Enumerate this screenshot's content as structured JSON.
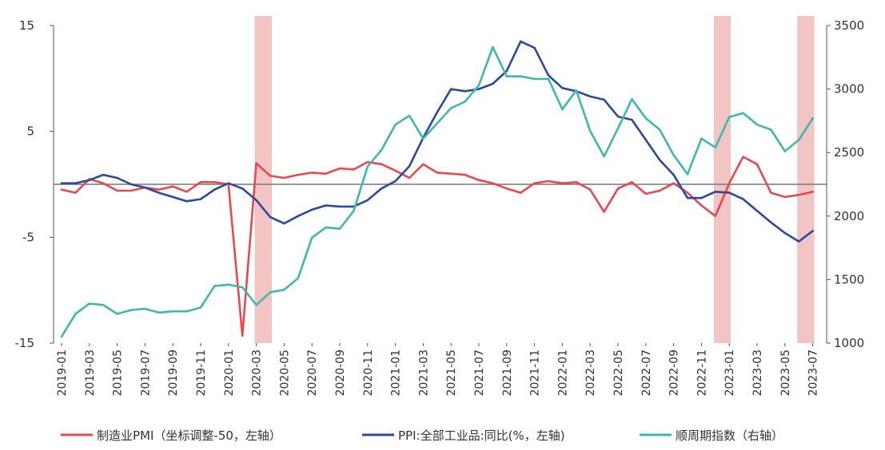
{
  "chart_data": {
    "type": "line",
    "title": "",
    "dual_axis": true,
    "left_axis": {
      "min": -15,
      "max": 15,
      "ticks": [
        15,
        5,
        -5,
        -15
      ]
    },
    "right_axis": {
      "min": 1000,
      "max": 3500,
      "ticks": [
        3500,
        3000,
        2500,
        2000,
        1500,
        1000
      ]
    },
    "x": [
      "2019-01",
      "2019-02",
      "2019-03",
      "2019-04",
      "2019-05",
      "2019-06",
      "2019-07",
      "2019-08",
      "2019-09",
      "2019-10",
      "2019-11",
      "2019-12",
      "2020-01",
      "2020-02",
      "2020-03",
      "2020-04",
      "2020-05",
      "2020-06",
      "2020-07",
      "2020-08",
      "2020-09",
      "2020-10",
      "2020-11",
      "2020-12",
      "2021-01",
      "2021-02",
      "2021-03",
      "2021-04",
      "2021-05",
      "2021-06",
      "2021-07",
      "2021-08",
      "2021-09",
      "2021-10",
      "2021-11",
      "2021-12",
      "2022-01",
      "2022-02",
      "2022-03",
      "2022-04",
      "2022-05",
      "2022-06",
      "2022-07",
      "2022-08",
      "2022-09",
      "2022-10",
      "2022-11",
      "2022-12",
      "2023-01",
      "2023-02",
      "2023-03",
      "2023-04",
      "2023-05",
      "2023-06",
      "2023-07"
    ],
    "x_tick_labels": [
      "2019-01",
      "2019-03",
      "2019-05",
      "2019-07",
      "2019-09",
      "2019-11",
      "2020-01",
      "2020-03",
      "2020-05",
      "2020-07",
      "2020-09",
      "2020-11",
      "2021-01",
      "2021-03",
      "2021-05",
      "2021-07",
      "2021-09",
      "2021-11",
      "2022-01",
      "2022-03",
      "2022-05",
      "2022-07",
      "2022-09",
      "2022-11",
      "2023-01",
      "2023-03",
      "2023-05",
      "2023-07"
    ],
    "shaded_periods": [
      {
        "start": "2020-03",
        "end": "2020-04"
      },
      {
        "start": "2022-12",
        "end": "2023-01"
      },
      {
        "start": "2023-06",
        "end": "2023-07"
      }
    ],
    "series": [
      {
        "name": "制造业PMI（坐标调整-50，左轴）",
        "axis": "left",
        "color": "#e8484e",
        "values": [
          -0.5,
          -0.8,
          0.5,
          0.1,
          -0.6,
          -0.6,
          -0.3,
          -0.5,
          -0.2,
          -0.7,
          0.2,
          0.2,
          0.0,
          -14.3,
          2.0,
          0.8,
          0.6,
          0.9,
          1.1,
          1.0,
          1.5,
          1.4,
          2.1,
          1.9,
          1.3,
          0.6,
          1.9,
          1.1,
          1.0,
          0.9,
          0.4,
          0.1,
          -0.4,
          -0.8,
          0.1,
          0.3,
          0.1,
          0.2,
          -0.5,
          -2.6,
          -0.4,
          0.2,
          -0.9,
          -0.6,
          0.1,
          -0.8,
          -2.0,
          -3.0,
          0.1,
          2.6,
          1.9,
          -0.8,
          -1.2,
          -1.0,
          -0.7
        ]
      },
      {
        "name": "PPI:全部工业品:同比(%，左轴)",
        "axis": "left",
        "color": "#2a4a9c",
        "values": [
          0.1,
          0.1,
          0.4,
          0.9,
          0.6,
          0.0,
          -0.3,
          -0.8,
          -1.2,
          -1.6,
          -1.4,
          -0.5,
          0.1,
          -0.4,
          -1.5,
          -3.1,
          -3.7,
          -3.0,
          -2.4,
          -2.0,
          -2.1,
          -2.1,
          -1.5,
          -0.4,
          0.3,
          1.7,
          4.4,
          6.8,
          9.0,
          8.8,
          9.0,
          9.5,
          10.7,
          13.5,
          12.9,
          10.3,
          9.1,
          8.8,
          8.3,
          8.0,
          6.4,
          6.1,
          4.2,
          2.3,
          0.9,
          -1.3,
          -1.3,
          -0.7,
          -0.8,
          -1.4,
          -2.5,
          -3.6,
          -4.6,
          -5.4,
          -4.4
        ]
      },
      {
        "name": "顺周期指数（右轴）",
        "axis": "right",
        "color": "#3fb8ab",
        "values": [
          1050,
          1230,
          1310,
          1300,
          1230,
          1260,
          1270,
          1240,
          1250,
          1250,
          1280,
          1450,
          1460,
          1440,
          1300,
          1400,
          1420,
          1510,
          1830,
          1910,
          1900,
          2040,
          2390,
          2520,
          2720,
          2790,
          2610,
          2730,
          2850,
          2900,
          3030,
          3330,
          3100,
          3100,
          3080,
          3080,
          2840,
          2990,
          2670,
          2470,
          2690,
          2920,
          2770,
          2680,
          2480,
          2330,
          2610,
          2540,
          2780,
          2810,
          2720,
          2680,
          2510,
          2600,
          2770
        ]
      }
    ],
    "legend_position": "bottom"
  }
}
